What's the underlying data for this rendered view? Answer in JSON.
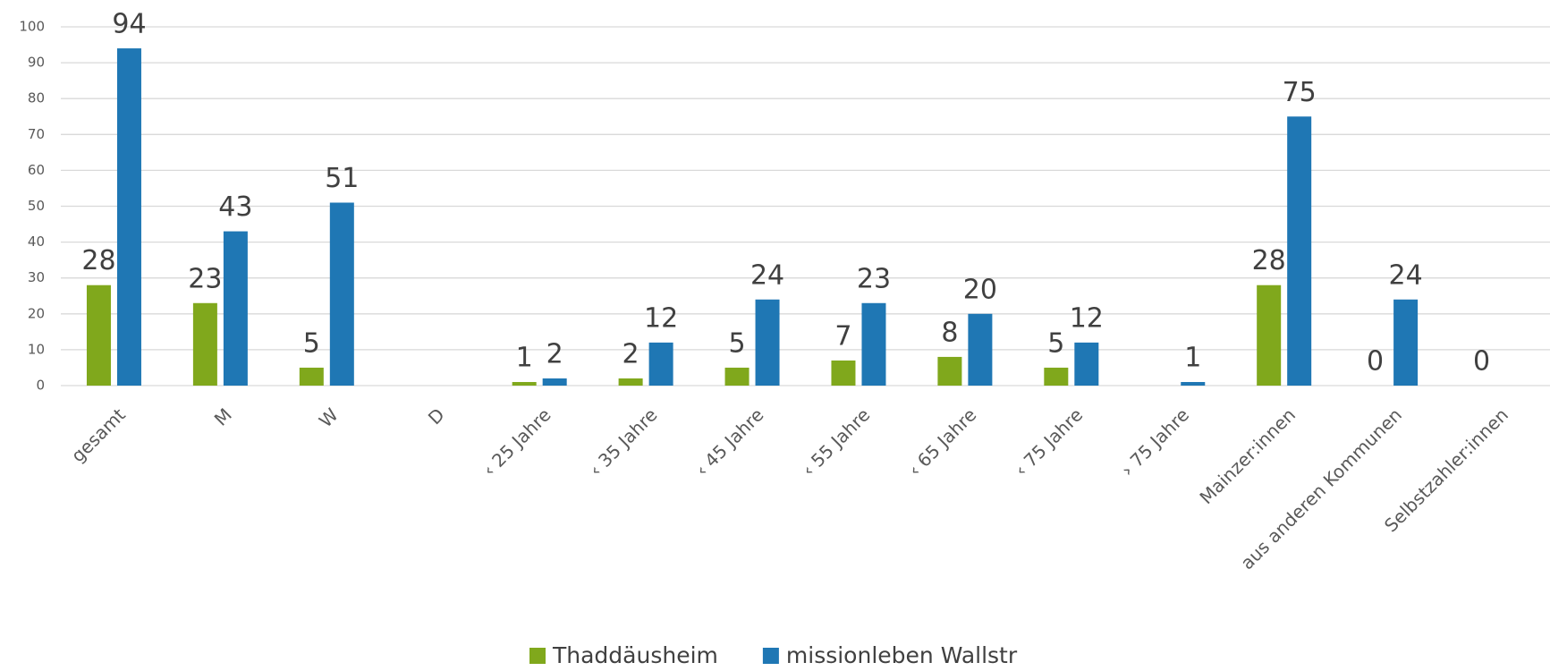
{
  "chart_data": {
    "type": "bar",
    "categories": [
      "gesamt",
      "M",
      "W",
      "D",
      "‹ 25 Jahre",
      "‹ 35 Jahre",
      "‹ 45 Jahre",
      "‹ 55 Jahre",
      "‹ 65 Jahre",
      "‹ 75 Jahre",
      "› 75 Jahre",
      "Mainzer:innen",
      "aus anderen  Kommunen",
      "Selbstzahler:innen"
    ],
    "series": [
      {
        "name": "Thaddäusheim",
        "color": "#80a81c",
        "values": [
          28,
          23,
          5,
          null,
          1,
          2,
          5,
          7,
          8,
          5,
          null,
          28,
          0,
          0
        ]
      },
      {
        "name": "missionleben Wallstr",
        "color": "#1f77b4",
        "values": [
          94,
          43,
          51,
          null,
          2,
          12,
          24,
          23,
          20,
          12,
          1,
          75,
          24,
          null
        ]
      }
    ],
    "ylim": [
      0,
      100
    ],
    "yticks": [
      0,
      10,
      20,
      30,
      40,
      50,
      60,
      70,
      80,
      90,
      100
    ],
    "grid": true,
    "legend": "bottom"
  }
}
